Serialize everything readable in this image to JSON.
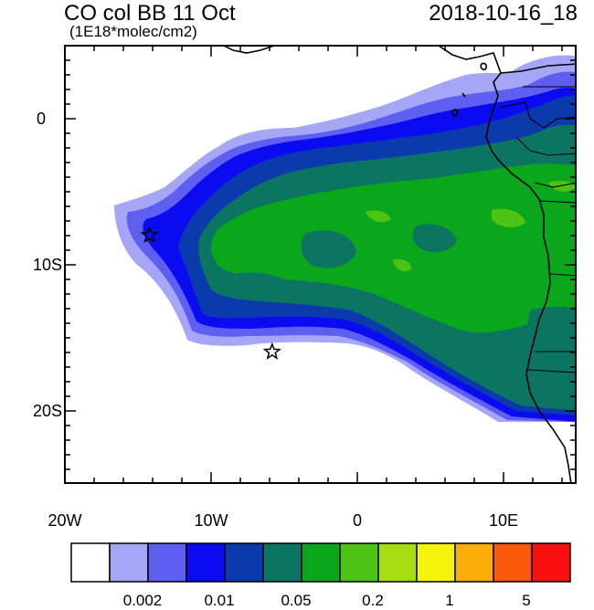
{
  "title_left": "CO col BB 11 Oct",
  "subtitle": "(1E18*molec/cm2)",
  "title_right": "2018-10-16_18",
  "y_ticks": [
    "0",
    "10S",
    "20S"
  ],
  "x_ticks": [
    "20W",
    "10W",
    "0",
    "10E"
  ],
  "colorbar": {
    "colors": [
      "#ffffff",
      "#a6a6f7",
      "#5e5ef0",
      "#0b0bf2",
      "#0a3aac",
      "#0c7562",
      "#0aa61c",
      "#4dc414",
      "#a7de10",
      "#f4f40b",
      "#fcad08",
      "#fb5a0a",
      "#fb1010"
    ],
    "labels": [
      "0.002",
      "0.01",
      "0.05",
      "0.2",
      "1",
      "5"
    ]
  },
  "markers": [
    {
      "name": "star-marker-1",
      "lon": -14.2,
      "lat": -8.0
    },
    {
      "name": "star-marker-2",
      "lon": -5.8,
      "lat": -16.0
    }
  ],
  "map_data": {
    "lon_range": [
      -20,
      15
    ],
    "lat_range": [
      -25,
      5
    ],
    "projection": "cylindrical equidistant",
    "field": "CO column, biomass burning tracer"
  }
}
